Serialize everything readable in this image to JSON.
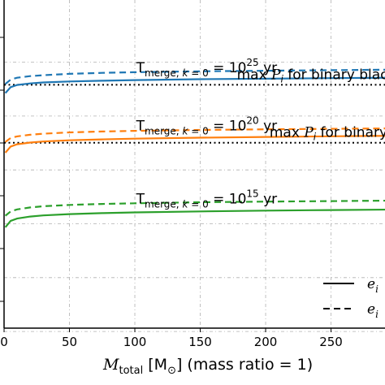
{
  "chart_data": {
    "type": "line",
    "xlabel": {
      "prefix": "M",
      "subscript": "total",
      "unit_open": " [M",
      "unit_symbol": "⊙",
      "suffix": "] (mass ratio = 1)"
    },
    "xlim": [
      0,
      295
    ],
    "xticks": [
      0,
      50,
      100,
      150,
      200,
      250
    ],
    "xtick_labels": [
      "0",
      "50",
      "100",
      "150",
      "200",
      "250"
    ],
    "grid": true,
    "colors": {
      "blue": "#1f77b4",
      "orange": "#ff7f0e",
      "green": "#2ca02c"
    },
    "series": [
      {
        "group": "1e25",
        "style": "solid",
        "color": "#1f77b4",
        "x": [
          1,
          5,
          10,
          20,
          30,
          50,
          75,
          100,
          150,
          200,
          250,
          295
        ],
        "y": [
          0.8,
          0.728,
          0.702,
          0.683,
          0.672,
          0.66,
          0.651,
          0.643,
          0.632,
          0.626,
          0.62,
          0.615
        ]
      },
      {
        "group": "1e25",
        "style": "dashed",
        "color": "#1f77b4",
        "x": [
          1,
          5,
          10,
          20,
          30,
          50,
          75,
          100,
          150,
          200,
          250,
          295
        ],
        "y": [
          0.69,
          0.637,
          0.615,
          0.595,
          0.584,
          0.568,
          0.556,
          0.548,
          0.537,
          0.53,
          0.524,
          0.518
        ]
      },
      {
        "group": "1e20",
        "style": "solid",
        "color": "#ff7f0e",
        "x": [
          1,
          5,
          10,
          20,
          30,
          50,
          75,
          100,
          150,
          200,
          250,
          295
        ],
        "y": [
          1.52,
          1.445,
          1.418,
          1.397,
          1.384,
          1.37,
          1.359,
          1.35,
          1.338,
          1.329,
          1.322,
          1.316
        ]
      },
      {
        "group": "1e20",
        "style": "dashed",
        "color": "#ff7f0e",
        "x": [
          1,
          5,
          10,
          20,
          30,
          50,
          75,
          100,
          150,
          200,
          250,
          295
        ],
        "y": [
          1.39,
          1.342,
          1.323,
          1.303,
          1.29,
          1.275,
          1.264,
          1.256,
          1.245,
          1.237,
          1.231,
          1.226
        ]
      },
      {
        "group": "1e15",
        "style": "solid",
        "color": "#2ca02c",
        "x": [
          1,
          5,
          10,
          20,
          30,
          50,
          75,
          100,
          150,
          200,
          250,
          295
        ],
        "y": [
          2.42,
          2.342,
          2.315,
          2.29,
          2.276,
          2.261,
          2.249,
          2.24,
          2.228,
          2.219,
          2.212,
          2.206
        ]
      },
      {
        "group": "1e15",
        "style": "dashed",
        "color": "#2ca02c",
        "x": [
          1,
          5,
          10,
          20,
          30,
          50,
          75,
          100,
          150,
          200,
          250,
          295
        ],
        "y": [
          2.28,
          2.228,
          2.204,
          2.18,
          2.166,
          2.15,
          2.138,
          2.13,
          2.118,
          2.11,
          2.104,
          2.098
        ]
      }
    ],
    "hlines": [
      {
        "y": 0.7,
        "style": "dotted"
      },
      {
        "y": 1.4,
        "style": "dotted"
      }
    ],
    "annotations": [
      {
        "main": "T",
        "sub": "merge, ",
        "subk": "k",
        "subeq": " = 0",
        "eq": " = 10",
        "exp": "25",
        "unit": " yr",
        "x": 101,
        "y": 0.55
      },
      {
        "main": "T",
        "sub": "merge, ",
        "subk": "k",
        "subeq": " = 0",
        "eq": " = 10",
        "exp": "20",
        "unit": " yr",
        "x": 101,
        "y": 1.25
      },
      {
        "main": "T",
        "sub": "merge, ",
        "subk": "k",
        "subeq": " = 0",
        "eq": " = 10",
        "exp": "15",
        "unit": " yr",
        "x": 101,
        "y": 2.13
      }
    ],
    "line_labels": [
      {
        "text_pre": "max ",
        "text_var": "P",
        "text_sub": "i",
        "text_post": " for binary black",
        "x": 178,
        "y": 0.66
      },
      {
        "text_pre": "max ",
        "text_var": "P",
        "text_sub": "i",
        "text_post": " for binary",
        "x": 203,
        "y": 1.36
      }
    ],
    "legend": {
      "placement": "lower-right",
      "entries": [
        {
          "style": "solid",
          "var": "e",
          "sub": "i"
        },
        {
          "style": "dashed",
          "var": "e",
          "sub": "i"
        }
      ]
    }
  }
}
